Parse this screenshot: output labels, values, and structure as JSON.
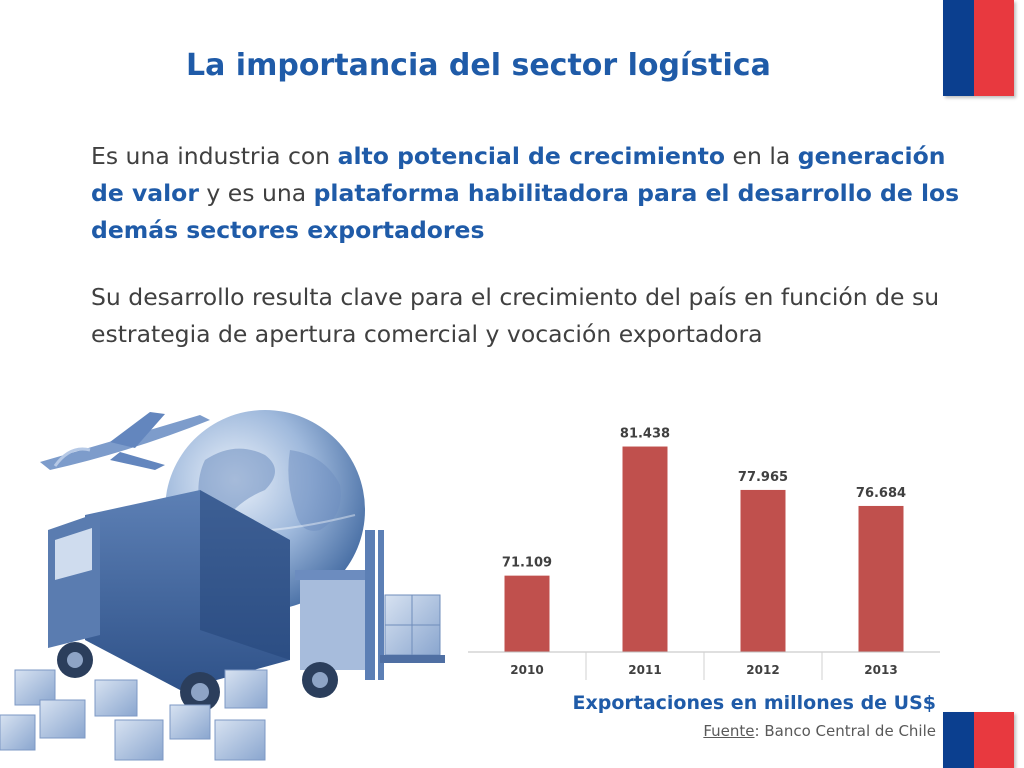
{
  "slide": {
    "title": "La importancia del sector logística",
    "paragraph1": [
      {
        "text": "Es una industria con ",
        "bold": false
      },
      {
        "text": "alto potencial de crecimiento",
        "bold": true
      },
      {
        "text": " en la ",
        "bold": false
      },
      {
        "text": "generación de valor",
        "bold": true
      },
      {
        "text": " y es una ",
        "bold": false
      },
      {
        "text": "plataforma habilitadora para el desarrollo de los demás sectores exportadores",
        "bold": true
      }
    ],
    "paragraph2": "Su desarrollo resulta clave para el crecimiento del país en función de su estrategia de apertura comercial y vocación exportadora"
  },
  "caption": {
    "label": "Exportaciones en millones de US$",
    "source_label": "Fuente",
    "source_sep": ":",
    "source_value": " Banco Central de Chile"
  },
  "colors": {
    "title": "#1f5ba8",
    "bar": "#c0504d",
    "flag_blue": "#0b3f8f",
    "flag_red": "#e8393f"
  },
  "illustration": {
    "icons": [
      "airplane-icon",
      "globe-icon",
      "truck-icon",
      "forklift-icon",
      "boxes-icon"
    ]
  },
  "chart_data": {
    "type": "bar",
    "categories": [
      "2010",
      "2011",
      "2012",
      "2013"
    ],
    "values": [
      71.109,
      81.438,
      77.965,
      76.684
    ],
    "value_labels": [
      "71.109",
      "81.438",
      "77.965",
      "76.684"
    ],
    "title": "",
    "xlabel": "",
    "ylabel": "",
    "ylim": [
      65,
      83
    ],
    "grid": false,
    "legend": "none"
  }
}
